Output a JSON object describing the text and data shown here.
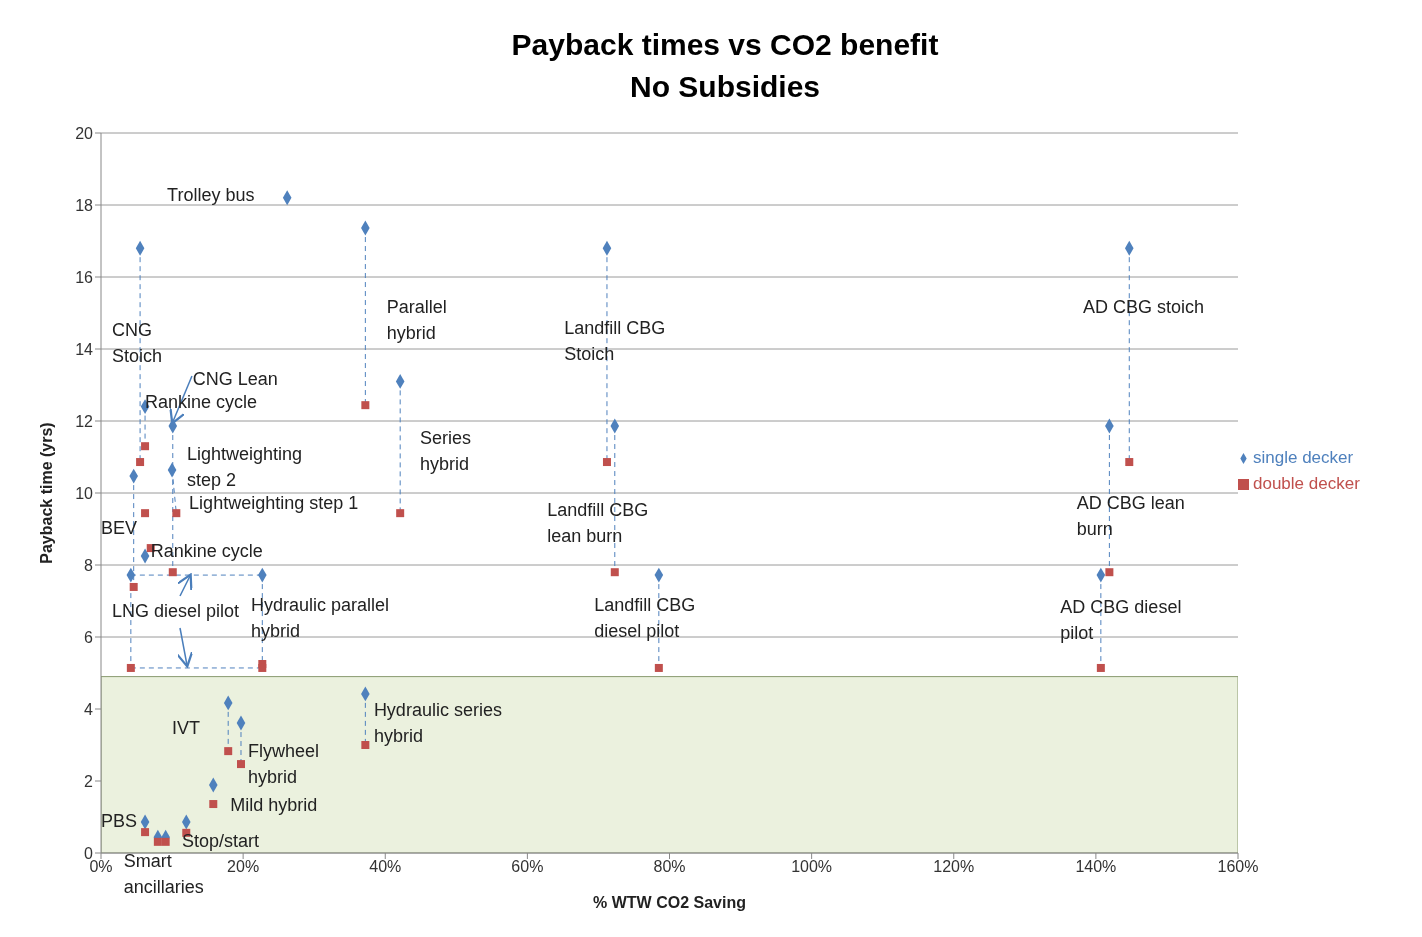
{
  "chart_data": {
    "type": "scatter",
    "title": "Payback times vs CO2 benefit\nNo Subsidies",
    "xlabel": "% WTW CO2 Saving",
    "ylabel": "Payback time (yrs)",
    "xlim": [
      0,
      160
    ],
    "xticks": [
      {
        "value": 0,
        "label": "0%"
      },
      {
        "value": 20,
        "label": "20%"
      },
      {
        "value": 40,
        "label": "40%"
      },
      {
        "value": 60,
        "label": "60%"
      },
      {
        "value": 80,
        "label": "80%"
      },
      {
        "value": 100,
        "label": "100%"
      },
      {
        "value": 120,
        "label": "120%"
      },
      {
        "value": 140,
        "label": "140%"
      },
      {
        "value": 160,
        "label": "160%"
      }
    ],
    "ylim": [
      0,
      20
    ],
    "yticks": [
      0,
      2,
      4,
      6,
      8,
      10,
      12,
      14,
      16,
      18,
      20
    ],
    "grid": "y",
    "legend": "right",
    "bands": [
      {
        "axis": "y",
        "from": 0,
        "to": 4.9,
        "color": "#ebf1de"
      }
    ],
    "series": [
      {
        "name": "single decker",
        "color": "#4f81bd",
        "marker": "diamond",
        "x": [
          26.2,
          5.5,
          37.2,
          71.2,
          144.7,
          42.1,
          6.2,
          10.1,
          72.3,
          141.9,
          10.0,
          4.6,
          6.2,
          4.2,
          22.7,
          78.5,
          140.7,
          37.2,
          17.9,
          19.7,
          15.8,
          6.2,
          8.0,
          9.1,
          12.0
        ],
        "values": [
          18.2,
          16.8,
          17.36,
          16.8,
          16.8,
          13.1,
          12.4,
          11.86,
          11.86,
          11.86,
          10.64,
          10.47,
          8.25,
          7.72,
          7.72,
          7.72,
          7.72,
          4.42,
          4.17,
          3.61,
          1.89,
          0.86,
          0.44,
          0.44,
          0.86
        ]
      },
      {
        "name": "double decker",
        "color": "#c0504d",
        "marker": "square",
        "x": [
          37.2,
          6.2,
          5.5,
          71.2,
          144.7,
          42.1,
          6.2,
          10.6,
          7.0,
          10.1,
          72.3,
          141.9,
          4.6,
          4.2,
          22.7,
          22.7,
          78.5,
          140.7,
          37.2,
          17.9,
          19.7,
          15.8,
          6.2,
          8.0,
          9.1,
          12.0
        ],
        "values": [
          12.44,
          11.3,
          10.86,
          10.86,
          10.86,
          9.44,
          9.44,
          9.44,
          8.47,
          7.8,
          7.8,
          7.8,
          7.39,
          5.14,
          5.25,
          5.14,
          5.14,
          5.14,
          3.0,
          2.83,
          2.47,
          1.36,
          0.58,
          0.31,
          0.31,
          0.56
        ]
      }
    ],
    "annotations": [
      {
        "text": "Trolley bus",
        "x": 26.2,
        "y": 18.2
      },
      "CNG\nStoich",
      {
        "text": "CNG Lean",
        "x": 10.1,
        "y": 11.86
      },
      {
        "text": "Rankine cycle",
        "x": 6.2,
        "y": 12.4
      },
      "Parallel\nhybrid",
      "Landfill CBG\nStoich",
      {
        "text": "AD CBG stoich",
        "x": 144.7,
        "y": 16.8
      },
      {
        "text": "Series\nhybrid",
        "x": 42.1,
        "y": 13.1
      },
      {
        "text": "Lightweighting\nstep 2",
        "x": 10.0,
        "y": 10.64
      },
      {
        "text": "Lightweighting step 1",
        "x": 10.6,
        "y": 9.44
      },
      {
        "text": "BEV",
        "x": 4.6,
        "y": 10.47
      },
      {
        "text": "Rankine cycle",
        "x": 6.2,
        "y": 8.25
      },
      {
        "text": "LNG diesel pilot",
        "x": 4.2,
        "y": 7.72
      },
      {
        "text": "Hydraulic parallel\nhybrid",
        "x": 22.7,
        "y": 7.72
      },
      "Landfill CBG\nlean burn",
      {
        "text": "Landfill CBG\ndiesel pilot",
        "x": 78.5,
        "y": 7.72
      },
      "AD CBG lean\nburn",
      {
        "text": "AD CBG diesel\npilot",
        "x": 140.7,
        "y": 7.72
      },
      {
        "text": "Hydraulic series\nhybrid",
        "x": 37.2,
        "y": 4.42
      },
      {
        "text": "IVT",
        "x": 17.9,
        "y": 4.17
      },
      {
        "text": "Flywheel\nhybrid",
        "x": 19.7,
        "y": 3.61
      },
      {
        "text": "Mild hybrid",
        "x": 15.8,
        "y": 1.89
      },
      {
        "text": "PBS",
        "x": 6.2,
        "y": 0.86
      },
      {
        "text": "Stop/start",
        "x": 12.0,
        "y": 0.86
      },
      {
        "text": "Smart\nancillaries",
        "x": 8.0,
        "y": 0.44
      }
    ]
  }
}
